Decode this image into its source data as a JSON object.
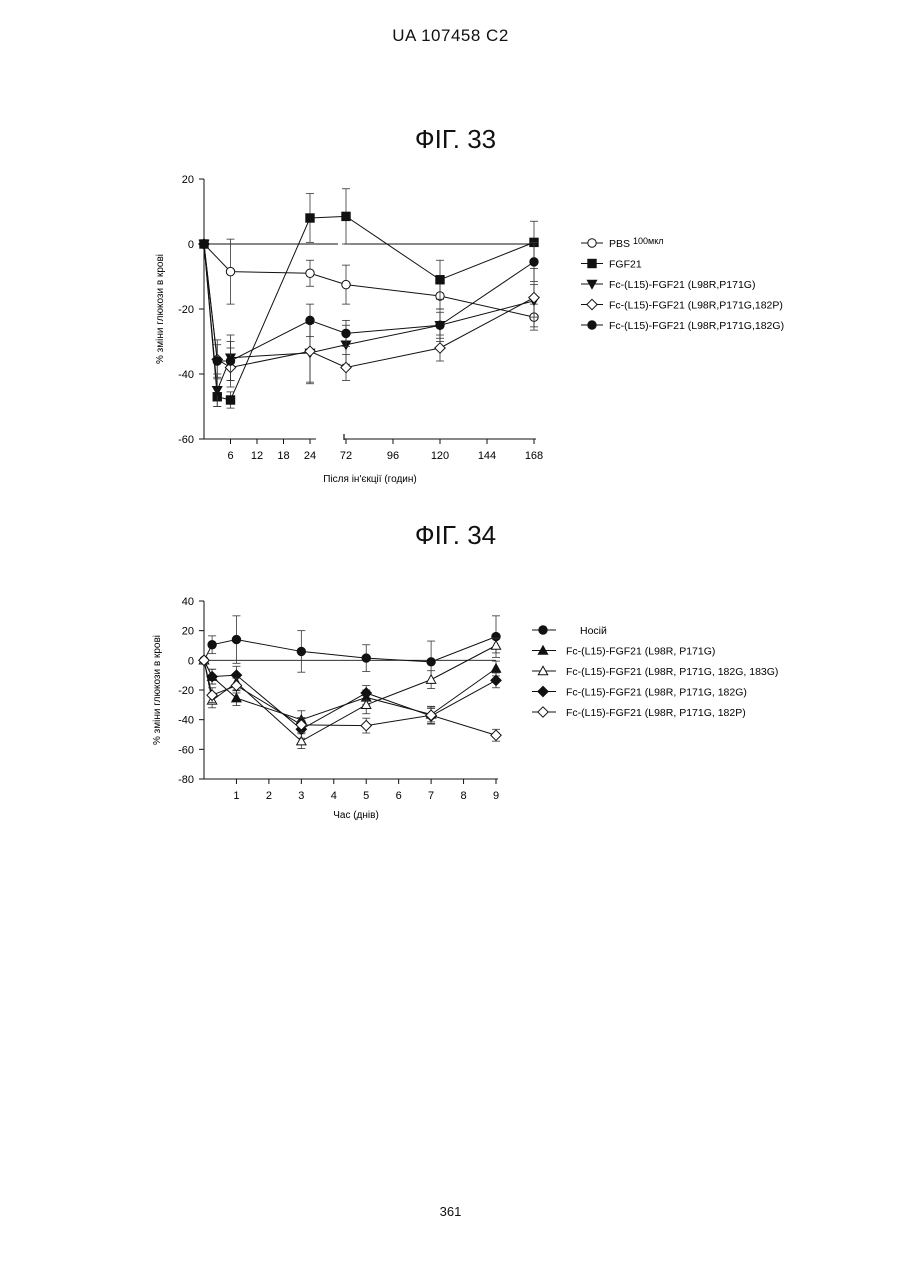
{
  "header": {
    "doc_id": "UA   107458   C2"
  },
  "footer": {
    "page_number": "361"
  },
  "chart_data": [
    {
      "type": "line",
      "title": "ФІГ. 33",
      "xlabel": "Після ін'єкції (годин)",
      "ylabel": "% зміни глюкози в крові",
      "ylim": [
        -60,
        20
      ],
      "yticks": [
        -60,
        -40,
        -20,
        0,
        20
      ],
      "xticks_left": [
        6,
        12,
        18,
        24
      ],
      "xticks_right": [
        72,
        96,
        120,
        144,
        168
      ],
      "x_axis_break": [
        24,
        72
      ],
      "legend_position": "right",
      "series": [
        {
          "name": "PBS",
          "name_suffix": "100мкл",
          "marker": "circle-open",
          "x": [
            0,
            6,
            24,
            72,
            120,
            168
          ],
          "y": [
            0,
            -8.5,
            -9,
            -12.5,
            -16,
            -22.5
          ],
          "yerr": [
            0,
            10,
            4,
            6,
            4,
            4
          ]
        },
        {
          "name": "FGF21",
          "marker": "square-filled",
          "x": [
            0,
            3,
            6,
            24,
            72,
            120,
            168
          ],
          "y": [
            0,
            -47,
            -48,
            8,
            8.5,
            -11,
            0.5
          ],
          "yerr": [
            0,
            3,
            2.5,
            7.5,
            8.5,
            6,
            6.5
          ]
        },
        {
          "name": "Fc-(L15)-FGF21 (L98R,P171G)",
          "marker": "triangle-down-filled",
          "x": [
            0,
            3,
            6,
            24,
            72,
            120,
            168
          ],
          "y": [
            0,
            -45,
            -35,
            -33.5,
            -31,
            -25,
            -17.5
          ],
          "yerr": [
            0,
            5,
            7,
            9,
            6,
            5,
            5
          ]
        },
        {
          "name": "Fc-(L15)-FGF21 (L98R,P171G,182P)",
          "marker": "diamond-open",
          "x": [
            0,
            3,
            6,
            24,
            72,
            120,
            168
          ],
          "y": [
            0,
            -35.5,
            -38,
            -33,
            -38,
            -32,
            -16.5
          ],
          "yerr": [
            0,
            6,
            6,
            10,
            4,
            4,
            9
          ]
        },
        {
          "name": "Fc-(L15)-FGF21 (L98R,P171G,182G)",
          "marker": "circle-filled",
          "x": [
            0,
            3,
            6,
            24,
            72,
            120,
            168
          ],
          "y": [
            0,
            -36,
            -36,
            -23.5,
            -27.5,
            -25,
            -5.5
          ],
          "yerr": [
            0,
            5,
            6,
            5,
            4,
            4,
            6
          ]
        }
      ]
    },
    {
      "type": "line",
      "title": "ФІГ. 34",
      "xlabel": "Час (днів)",
      "ylabel": "% зміни глюкози в крові",
      "ylim": [
        -80,
        40
      ],
      "xlim": [
        0,
        9
      ],
      "yticks": [
        -80,
        -60,
        -40,
        -20,
        0,
        20,
        40
      ],
      "xticks": [
        1,
        2,
        3,
        4,
        5,
        6,
        7,
        8,
        9
      ],
      "legend_position": "right",
      "series": [
        {
          "name": "Носій",
          "marker": "circle-filled",
          "x": [
            0,
            0.25,
            1,
            3,
            5,
            7,
            9
          ],
          "y": [
            0,
            10.5,
            14,
            6,
            1.5,
            -1,
            16
          ],
          "yerr": [
            0,
            6,
            16,
            14,
            9,
            14,
            14
          ]
        },
        {
          "name": "Fc-(L15)-FGF21 (L98R, P171G)",
          "marker": "triangle-up-filled",
          "x": [
            0,
            0.25,
            1,
            3,
            5,
            7,
            9
          ],
          "y": [
            0,
            -11,
            -25.5,
            -40,
            -25,
            -36.5,
            -5.5
          ],
          "yerr": [
            0,
            5,
            5,
            6,
            5,
            5,
            5
          ]
        },
        {
          "name": "Fc-(L15)-FGF21 (L98R, P171G, 182G, 183G)",
          "marker": "triangle-up-open",
          "x": [
            0,
            0.25,
            1,
            3,
            5,
            7,
            9
          ],
          "y": [
            0,
            -27,
            -15,
            -54.5,
            -30,
            -13,
            10
          ],
          "yerr": [
            0,
            5,
            5,
            5,
            6,
            6,
            5
          ]
        },
        {
          "name": "Fc-(L15)-FGF21 (L98R, P171G, 182G)",
          "marker": "diamond-filled",
          "x": [
            0,
            0.25,
            1,
            3,
            5,
            7,
            9
          ],
          "y": [
            0,
            -11,
            -10,
            -46.5,
            -22,
            -37.5,
            -13.5
          ],
          "yerr": [
            0,
            5,
            6,
            6,
            5,
            5,
            5
          ]
        },
        {
          "name": "Fc-(L15)-FGF21 (L98R, P171G, 182P)",
          "marker": "diamond-open",
          "x": [
            0,
            0.25,
            1,
            3,
            5,
            7,
            9
          ],
          "y": [
            0,
            -23.5,
            -17,
            -43.5,
            -44,
            -37,
            -50.5
          ],
          "yerr": [
            0,
            5,
            5,
            5,
            5,
            6,
            4
          ]
        }
      ]
    }
  ]
}
